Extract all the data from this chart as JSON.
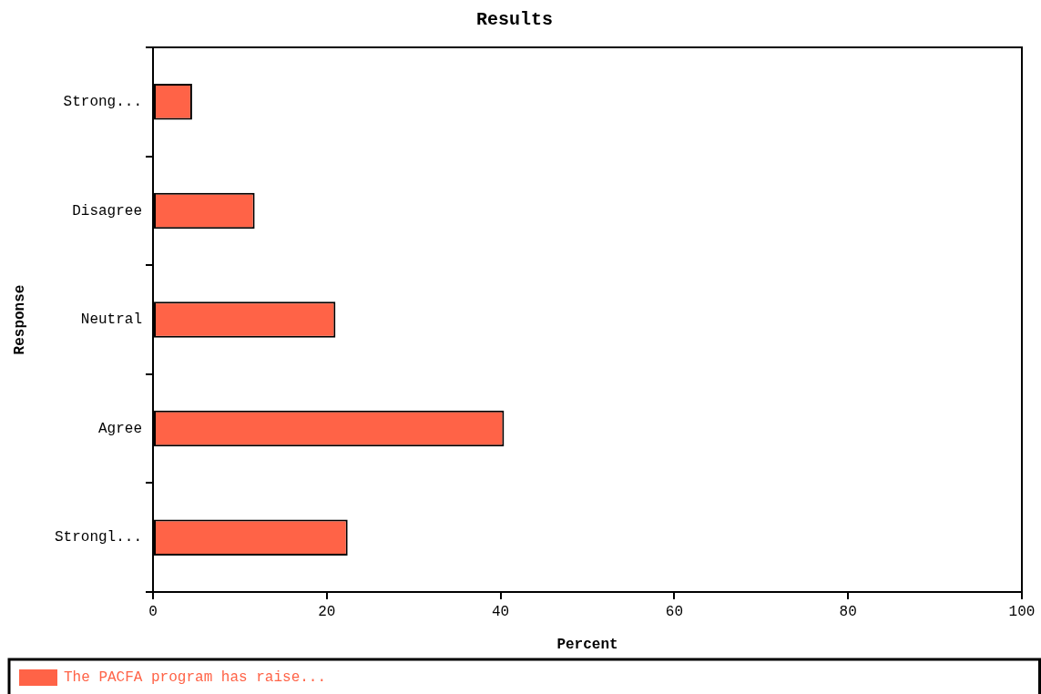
{
  "chart_data": {
    "type": "bar",
    "orientation": "horizontal",
    "title": "Results",
    "xlabel": "Percent",
    "ylabel": "Response",
    "categories": [
      "Strong...",
      "Disagree",
      "Neutral",
      "Agree",
      "Strongl..."
    ],
    "series": [
      {
        "name": "The PACFA program has raise...",
        "color": "#ff6347",
        "values": [
          4.5,
          11.7,
          21.0,
          40.4,
          22.4
        ]
      }
    ],
    "xlim": [
      0,
      100
    ],
    "xticks": [
      0,
      20,
      40,
      60,
      80,
      100
    ],
    "legend": "bottom"
  }
}
